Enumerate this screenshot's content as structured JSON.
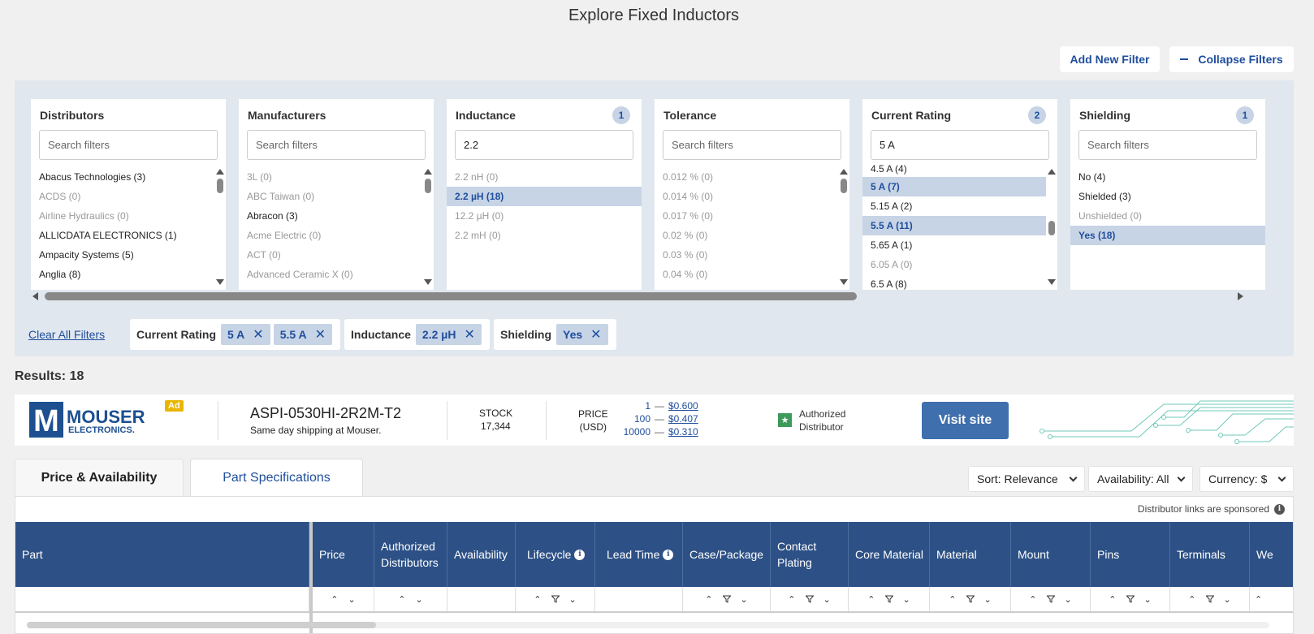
{
  "page": {
    "title": "Explore Fixed Inductors"
  },
  "toolbar": {
    "add_filter": "Add New Filter",
    "collapse_filters": "Collapse Filters"
  },
  "filters": [
    {
      "title": "Distributors",
      "badge": "",
      "search_value": "",
      "placeholder": "Search filters",
      "items": [
        {
          "label": "Abacus Technologies (3)",
          "state": "normal"
        },
        {
          "label": "ACDS (0)",
          "state": "dim"
        },
        {
          "label": "Airline Hydraulics (0)",
          "state": "dim"
        },
        {
          "label": "ALLICDATA ELECTRONICS (1)",
          "state": "normal"
        },
        {
          "label": "Ampacity Systems (5)",
          "state": "normal"
        },
        {
          "label": "Anglia (8)",
          "state": "normal"
        }
      ]
    },
    {
      "title": "Manufacturers",
      "badge": "",
      "search_value": "",
      "placeholder": "Search filters",
      "items": [
        {
          "label": "3L (0)",
          "state": "dim"
        },
        {
          "label": "ABC Taiwan (0)",
          "state": "dim"
        },
        {
          "label": "Abracon (3)",
          "state": "normal"
        },
        {
          "label": "Acme Electric (0)",
          "state": "dim"
        },
        {
          "label": "ACT (0)",
          "state": "dim"
        },
        {
          "label": "Advanced Ceramic X (0)",
          "state": "dim"
        }
      ]
    },
    {
      "title": "Inductance",
      "badge": "1",
      "search_value": "2.2",
      "placeholder": "Search filters",
      "items": [
        {
          "label": "2.2 nH (0)",
          "state": "dim"
        },
        {
          "label": "2.2 µH (18)",
          "state": "sel"
        },
        {
          "label": "12.2 µH (0)",
          "state": "dim"
        },
        {
          "label": "2.2 mH (0)",
          "state": "dim"
        }
      ]
    },
    {
      "title": "Tolerance",
      "badge": "",
      "search_value": "",
      "placeholder": "Search filters",
      "items": [
        {
          "label": "0.012 % (0)",
          "state": "dim"
        },
        {
          "label": "0.014 % (0)",
          "state": "dim"
        },
        {
          "label": "0.017 % (0)",
          "state": "dim"
        },
        {
          "label": "0.02 % (0)",
          "state": "dim"
        },
        {
          "label": "0.03 % (0)",
          "state": "dim"
        },
        {
          "label": "0.04 % (0)",
          "state": "dim"
        }
      ]
    },
    {
      "title": "Current Rating",
      "badge": "2",
      "search_value": "5 A",
      "placeholder": "Search filters",
      "items": [
        {
          "label": "4.5 A (4)",
          "state": "normal"
        },
        {
          "label": "5 A (7)",
          "state": "sel"
        },
        {
          "label": "5.15 A (2)",
          "state": "normal"
        },
        {
          "label": "5.5 A (11)",
          "state": "sel"
        },
        {
          "label": "5.65 A (1)",
          "state": "normal"
        },
        {
          "label": "6.05 A (0)",
          "state": "dim"
        },
        {
          "label": "6.5 A (8)",
          "state": "normal"
        }
      ]
    },
    {
      "title": "Shielding",
      "badge": "1",
      "search_value": "",
      "placeholder": "Search filters",
      "items": [
        {
          "label": "No (4)",
          "state": "normal"
        },
        {
          "label": "Shielded (3)",
          "state": "normal"
        },
        {
          "label": "Unshielded (0)",
          "state": "dim"
        },
        {
          "label": "Yes (18)",
          "state": "sel"
        }
      ]
    }
  ],
  "active": {
    "clear_all": "Clear All Filters",
    "current_label": "Current Rating",
    "current_values": [
      "5 A",
      "5.5 A"
    ],
    "inductance_label": "Inductance",
    "inductance_values": [
      "2.2 µH"
    ],
    "shielding_label": "Shielding",
    "shielding_values": [
      "Yes"
    ]
  },
  "results": {
    "label": "Results: 18"
  },
  "ad": {
    "tag": "Ad",
    "logo_main": "MOUSER",
    "logo_sub": "ELECTRONICS.",
    "logo_letter": "M",
    "part": "ASPI-0530HI-2R2M-T2",
    "shipping": "Same day shipping at Mouser.",
    "stock_label": "STOCK",
    "stock_value": "17,344",
    "price_label_1": "PRICE",
    "price_label_2": "(USD)",
    "tiers": [
      {
        "qty": "1",
        "price": "$0.600"
      },
      {
        "qty": "100",
        "price": "$0.407"
      },
      {
        "qty": "10000",
        "price": "$0.310"
      }
    ],
    "dash": "—",
    "auth_1": "Authorized",
    "auth_2": "Distributor",
    "visit": "Visit site",
    "colors": {
      "logo_blue": "#1d4f91",
      "visit": "#3f6fad",
      "star": "#3d9a5b",
      "circuit": "#6fc8b8"
    }
  },
  "tabs": {
    "price": "Price & Availability",
    "specs": "Part Specifications"
  },
  "dropdowns": {
    "sort": "Sort: Relevance",
    "availability": "Availability: All",
    "currency": "Currency: $"
  },
  "table": {
    "sponsored": "Distributor links are sponsored",
    "columns": [
      {
        "label": "Part"
      },
      {
        "label": "Price"
      },
      {
        "label": "Authorized Distributors"
      },
      {
        "label": "Availability"
      },
      {
        "label": "Lifecycle"
      },
      {
        "label": "Lead Time"
      },
      {
        "label": "Case/Package"
      },
      {
        "label": "Contact Plating"
      },
      {
        "label": "Core Material"
      },
      {
        "label": "Material"
      },
      {
        "label": "Mount"
      },
      {
        "label": "Pins"
      },
      {
        "label": "Terminals"
      },
      {
        "label": "We"
      }
    ],
    "arrows": {
      "up": "⌃",
      "down": "⌄"
    }
  }
}
